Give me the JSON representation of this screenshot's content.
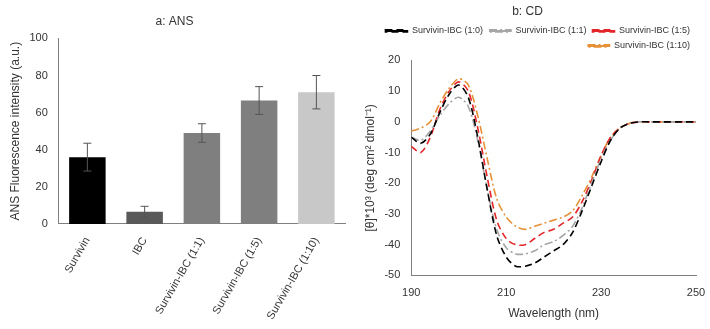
{
  "chart_data": [
    {
      "type": "bar",
      "title": "a: ANS",
      "y_label": "ANS Fluorescence intensity (a.u.)",
      "categories": [
        "Survivin",
        "IBC",
        "Survivin-IBC (1:1)",
        "Survivin-IBC (1:5)",
        "Survivin-IBC (1:10)"
      ],
      "values": [
        36,
        6.5,
        49,
        66.5,
        71
      ],
      "errors": [
        7.5,
        3,
        5,
        7.5,
        9
      ],
      "colors": [
        "#000000",
        "#595959",
        "#7f7f7f",
        "#7f7f7f",
        "#c8c8c8"
      ],
      "ylim": [
        0,
        100
      ],
      "yticks": [
        0,
        20,
        40,
        60,
        80,
        100
      ],
      "grid": false
    },
    {
      "type": "line",
      "title": "b: CD",
      "x_label": "Wavelength (nm)",
      "y_label": "[θ]*10³ (deg cm² dmol⁻¹)",
      "x": [
        190,
        192,
        194,
        196,
        198,
        200,
        202,
        204,
        206,
        208,
        210,
        212,
        214,
        216,
        218,
        220,
        222,
        224,
        226,
        228,
        230,
        232,
        234,
        236,
        238,
        240,
        242,
        244,
        246,
        248,
        250
      ],
      "series": [
        {
          "name": "Survivin-IBC (1:0)",
          "color": "#000000",
          "line_style": "dashed",
          "values": [
            -5,
            -7,
            -4,
            3,
            9,
            12,
            8,
            -5,
            -22,
            -37,
            -44,
            -47,
            -47,
            -46,
            -44,
            -42,
            -40,
            -36,
            -29,
            -21,
            -13,
            -6,
            -2,
            -0.5,
            0,
            0,
            0,
            0,
            0,
            0,
            0
          ]
        },
        {
          "name": "Survivin-IBC (1:1)",
          "color": "#a6a6a6",
          "line_style": "dashdot",
          "values": [
            -5,
            -6,
            -3,
            2,
            6,
            8,
            5,
            -6,
            -22,
            -35,
            -41,
            -43,
            -43,
            -42,
            -40,
            -39,
            -37,
            -34,
            -28,
            -20,
            -12,
            -6,
            -2,
            -0.5,
            0,
            0,
            0,
            0,
            0,
            0,
            0
          ]
        },
        {
          "name": "Survivin-IBC (1:5)",
          "color": "#e3262a",
          "line_style": "dashed",
          "values": [
            -8,
            -10,
            -5,
            4,
            10,
            13,
            10,
            -2,
            -18,
            -32,
            -38,
            -40,
            -40,
            -38,
            -36,
            -35,
            -33,
            -31,
            -26,
            -19,
            -11,
            -5,
            -2,
            -0.5,
            0,
            0,
            0,
            0,
            0,
            0,
            0
          ]
        },
        {
          "name": "Survivin-IBC (1:10)",
          "color": "#e69138",
          "line_style": "dashdot",
          "values": [
            -3,
            -2,
            0,
            6,
            11,
            14,
            12,
            2,
            -12,
            -25,
            -31,
            -34,
            -35,
            -34,
            -33,
            -32,
            -31,
            -29,
            -24,
            -18,
            -11,
            -5,
            -2,
            -0.5,
            0,
            0,
            0,
            0,
            0,
            0,
            0
          ]
        }
      ],
      "xlim": [
        190,
        250
      ],
      "xticks": [
        190,
        210,
        230,
        250
      ],
      "ylim": [
        -50,
        20
      ],
      "yticks": [
        -50,
        -40,
        -30,
        -20,
        -10,
        0,
        10,
        20
      ],
      "grid": false,
      "legend": "upper right"
    }
  ]
}
